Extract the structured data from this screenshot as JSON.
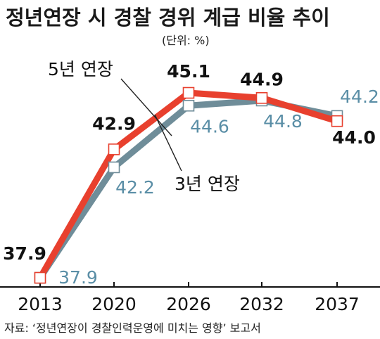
{
  "header": {
    "title": "정년연장 시 경찰 경위 계급 비율 추이",
    "unit": "(단위: %)"
  },
  "footer": {
    "source": "자료: ‘정년연장이 경찰인력운영에 미치는 영향’ 보고서"
  },
  "colors": {
    "series_a": "#e8402e",
    "series_b": "#6f8d99",
    "label_b": "#5a8ea6",
    "marker_fill": "#ffffff",
    "axis": "#111111"
  },
  "chart_data": {
    "type": "line",
    "title": "정년연장 시 경찰 경위 계급 비율 추이",
    "unit": "(단위: %)",
    "x": [
      "2013",
      "2020",
      "2026",
      "2032",
      "2037"
    ],
    "series": [
      {
        "name": "5년 연장",
        "values": [
          37.9,
          42.9,
          45.1,
          44.9,
          44.0
        ]
      },
      {
        "name": "3년 연장",
        "values": [
          37.9,
          42.2,
          44.6,
          44.8,
          44.2
        ]
      }
    ],
    "value_labels": {
      "5년 연장": [
        "37.9",
        "42.9",
        "45.1",
        "44.9",
        "44.0"
      ],
      "3년 연장": [
        "37.9",
        "42.2",
        "44.6",
        "44.8",
        "44.2"
      ]
    },
    "ylim": [
      37.9,
      45.1
    ],
    "grid": false,
    "legend": "inline labels with leader lines"
  }
}
